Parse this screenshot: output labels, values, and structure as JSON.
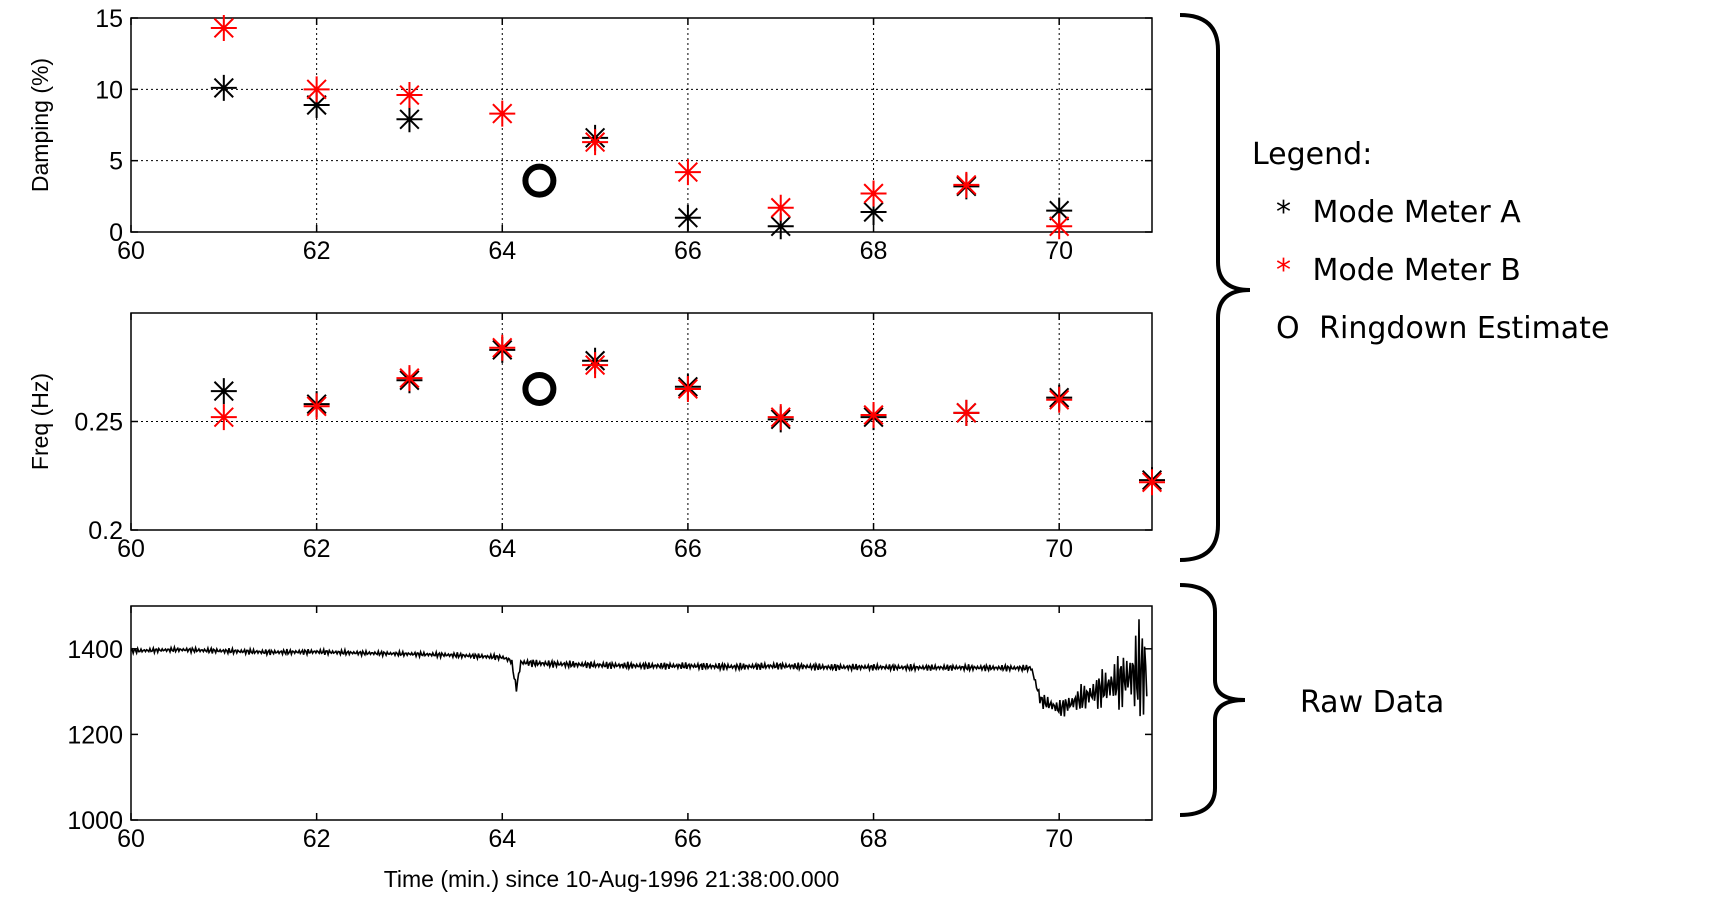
{
  "colors": {
    "mode_meter_a": "#000000",
    "mode_meter_b": "#ff0000",
    "ringdown": "#000000",
    "grid": "#000000",
    "raw_line": "#000000"
  },
  "legend": {
    "title": "Legend:",
    "items": [
      {
        "marker": "*",
        "label": "Mode Meter  A",
        "color": "#000000"
      },
      {
        "marker": "*",
        "label": "Mode Meter B",
        "color": "#ff0000"
      },
      {
        "marker": "O",
        "label": "Ringdown Estimate",
        "color": "#000000"
      }
    ]
  },
  "raw_data_label": "Raw Data",
  "chart_data": [
    {
      "type": "scatter",
      "ylabel": "Damping (%)",
      "xlabel": "",
      "xlim": [
        60,
        71
      ],
      "ylim": [
        0,
        15
      ],
      "xticks": [
        60,
        62,
        64,
        66,
        68,
        70
      ],
      "yticks": [
        0,
        5,
        10,
        15
      ],
      "grid": true,
      "series": [
        {
          "name": "Mode Meter  A",
          "color": "#000000",
          "marker": "asterisk",
          "x": [
            61,
            62,
            63,
            65,
            66,
            67,
            68,
            69,
            70
          ],
          "y": [
            10.1,
            8.9,
            7.9,
            6.6,
            1.0,
            0.4,
            1.4,
            3.2,
            1.5
          ]
        },
        {
          "name": "Mode Meter B",
          "color": "#ff0000",
          "marker": "asterisk",
          "x": [
            61,
            62,
            63,
            64,
            65,
            66,
            67,
            68,
            69,
            70
          ],
          "y": [
            14.3,
            10.0,
            9.6,
            8.3,
            6.3,
            4.2,
            1.7,
            2.7,
            3.3,
            0.4
          ]
        },
        {
          "name": "Ringdown Estimate",
          "color": "#000000",
          "marker": "circle",
          "x": [
            64.4
          ],
          "y": [
            3.6
          ]
        }
      ]
    },
    {
      "type": "scatter",
      "ylabel": "Freq (Hz)",
      "xlabel": "",
      "xlim": [
        60,
        71
      ],
      "ylim": [
        0.2,
        0.3
      ],
      "xticks": [
        60,
        62,
        64,
        66,
        68,
        70
      ],
      "yticks": [
        0.2,
        0.25
      ],
      "grid": true,
      "series": [
        {
          "name": "Mode Meter  A",
          "color": "#000000",
          "marker": "asterisk",
          "x": [
            61,
            62,
            63,
            64,
            65,
            66,
            67,
            68,
            69,
            70,
            71
          ],
          "y": [
            0.264,
            0.258,
            0.269,
            0.283,
            0.278,
            0.266,
            0.251,
            0.252,
            0.254,
            0.261,
            0.223
          ]
        },
        {
          "name": "Mode Meter B",
          "color": "#ff0000",
          "marker": "asterisk",
          "x": [
            61,
            62,
            63,
            64,
            65,
            66,
            67,
            68,
            69,
            70,
            71
          ],
          "y": [
            0.252,
            0.257,
            0.27,
            0.284,
            0.276,
            0.265,
            0.252,
            0.253,
            0.254,
            0.26,
            0.222
          ]
        },
        {
          "name": "Ringdown Estimate",
          "color": "#000000",
          "marker": "circle",
          "x": [
            64.4
          ],
          "y": [
            0.265
          ]
        }
      ]
    },
    {
      "type": "line",
      "ylabel": "",
      "xlabel": "Time (min.) since 10-Aug-1996 21:38:00.000",
      "xlim": [
        60,
        71
      ],
      "ylim": [
        1000,
        1500
      ],
      "xticks": [
        60,
        62,
        64,
        66,
        68,
        70
      ],
      "yticks": [
        1000,
        1200,
        1400
      ],
      "grid": false,
      "series": [
        {
          "name": "",
          "color": "#000000",
          "x": [
            60,
            60.5,
            61,
            61.5,
            62,
            62.5,
            63,
            63.5,
            64,
            64.1,
            64.15,
            64.2,
            64.5,
            65,
            65.5,
            66,
            66.5,
            67,
            67.5,
            68,
            68.5,
            69,
            69.5,
            69.7,
            69.8,
            70,
            70.2,
            70.4,
            70.6,
            70.8,
            70.95
          ],
          "y": [
            1395,
            1398,
            1395,
            1392,
            1393,
            1390,
            1388,
            1385,
            1380,
            1372,
            1305,
            1368,
            1365,
            1362,
            1360,
            1360,
            1358,
            1360,
            1357,
            1357,
            1356,
            1356,
            1355,
            1355,
            1280,
            1260,
            1280,
            1300,
            1320,
            1340,
            1350
          ],
          "oscillation": [
            6,
            6,
            7,
            7,
            7,
            6,
            6,
            7,
            7,
            8,
            10,
            10,
            9,
            9,
            9,
            9,
            9,
            9,
            9,
            8,
            8,
            8,
            8,
            8,
            18,
            22,
            32,
            45,
            65,
            95,
            180
          ]
        }
      ]
    }
  ]
}
